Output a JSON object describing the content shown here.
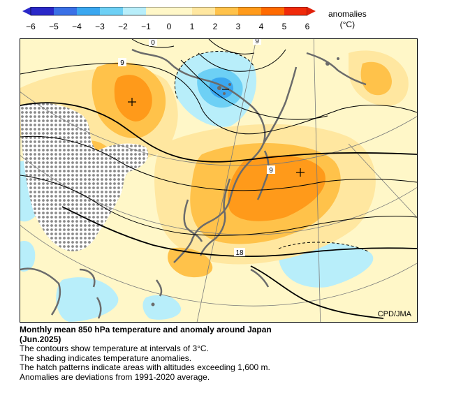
{
  "colorbar": {
    "title_line1": "anomalies",
    "title_line2": "(°C)",
    "ticks": [
      "−6",
      "−5",
      "−4",
      "−3",
      "−2",
      "−1",
      "0",
      "1",
      "2",
      "3",
      "4",
      "5",
      "6"
    ],
    "colors": [
      "#2a28c8",
      "#3a70e6",
      "#3aa7f0",
      "#6dd0f5",
      "#b8eefa",
      "#fff7c8",
      "#fff7c8",
      "#ffe7a0",
      "#ffc24a",
      "#ff9a1a",
      "#ff6a00",
      "#f02a0a"
    ]
  },
  "map": {
    "contour_labels": [
      "0",
      "9",
      "9",
      "9",
      "18"
    ],
    "credit": "CPD/JMA"
  },
  "caption": {
    "title": "Monthly mean 850 hPa temperature and anomaly around Japan",
    "date": "(Jun.2025)",
    "line1": "The contours show temperature at intervals of 3°C.",
    "line2": "The shading indicates temperature anomalies.",
    "line3": "The hatch patterns indicate areas with altitudes exceeding 1,600 m.",
    "line4": "Anomalies are deviations from 1991-2020 average."
  }
}
